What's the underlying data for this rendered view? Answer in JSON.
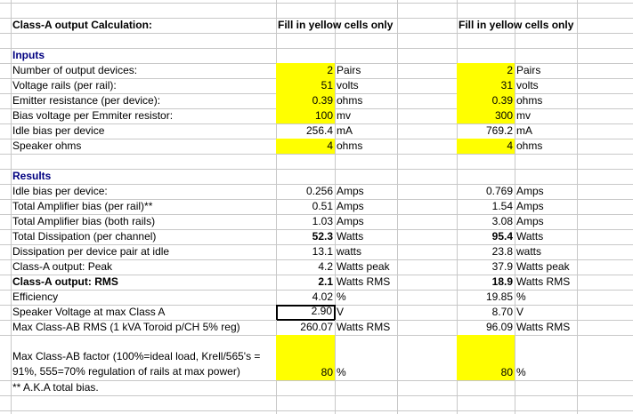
{
  "title_row": {
    "label": "Class-A output Calculation:",
    "note1": "Fill in yellow cells only",
    "note2": "Fill in yellow cells only"
  },
  "inputs": {
    "heading": "Inputs",
    "rows": [
      {
        "label": "Number of output devices:",
        "value1": "2",
        "unit1": "Pairs",
        "value2": "2",
        "unit2": "Pairs"
      },
      {
        "label": "Voltage rails (per rail):",
        "value1": "51",
        "unit1": "volts",
        "value2": "31",
        "unit2": "volts"
      },
      {
        "label": "Emitter resistance (per device):",
        "value1": "0.39",
        "unit1": "ohms",
        "value2": "0.39",
        "unit2": "ohms"
      },
      {
        "label": "Bias voltage per Emmiter resistor:",
        "value1": "100",
        "unit1": "mv",
        "value2": "300",
        "unit2": "mv"
      },
      {
        "label": "Idle bias per device",
        "value1": "256.4",
        "unit1": "mA",
        "value2": "769.2",
        "unit2": "mA"
      },
      {
        "label": "Speaker ohms",
        "value1": "4",
        "unit1": "ohms",
        "value2": "4",
        "unit2": "ohms"
      }
    ]
  },
  "results": {
    "heading": "Results",
    "rows": [
      {
        "label": "Idle bias per device:",
        "value1": "0.256",
        "unit1": "Amps",
        "value2": "0.769",
        "unit2": "Amps"
      },
      {
        "label": "Total Amplifier bias (per rail)**",
        "value1": "0.51",
        "unit1": "Amps",
        "value2": "1.54",
        "unit2": "Amps"
      },
      {
        "label": "Total Amplifier bias (both rails)",
        "value1": "1.03",
        "unit1": "Amps",
        "value2": "3.08",
        "unit2": "Amps"
      },
      {
        "label": "Total Dissipation (per channel)",
        "value1": "52.3",
        "unit1": "Watts",
        "value2": "95.4",
        "unit2": "Watts"
      },
      {
        "label": "Dissipation per device pair at idle",
        "value1": "13.1",
        "unit1": "watts",
        "value2": "23.8",
        "unit2": "watts"
      },
      {
        "label": "Class-A output: Peak",
        "value1": "4.2",
        "unit1": "Watts peak",
        "value2": "37.9",
        "unit2": "Watts peak"
      },
      {
        "label": "Class-A output: RMS",
        "value1": "2.1",
        "unit1": "Watts RMS",
        "value2": "18.9",
        "unit2": "Watts RMS"
      },
      {
        "label": "Efficiency",
        "value1": "4.02",
        "unit1": "%",
        "value2": "19.85",
        "unit2": "%"
      },
      {
        "label": "Speaker Voltage at max Class A",
        "value1": "2.90",
        "unit1": "V",
        "value2": "8.70",
        "unit2": "V"
      },
      {
        "label": "Max Class-AB RMS (1 kVA Toroid p/CH 5% reg)",
        "value1": "260.07",
        "unit1": "Watts RMS",
        "value2": "96.09",
        "unit2": "Watts RMS"
      }
    ]
  },
  "factor": {
    "label": "Max Class-AB factor (100%=ideal load, Krell/565's = 91%, 555=70% regulation of rails at max power)",
    "value1": "80",
    "unit1": "%",
    "value2": "80",
    "unit2": "%"
  },
  "footnote": "** A.K.A total bias."
}
